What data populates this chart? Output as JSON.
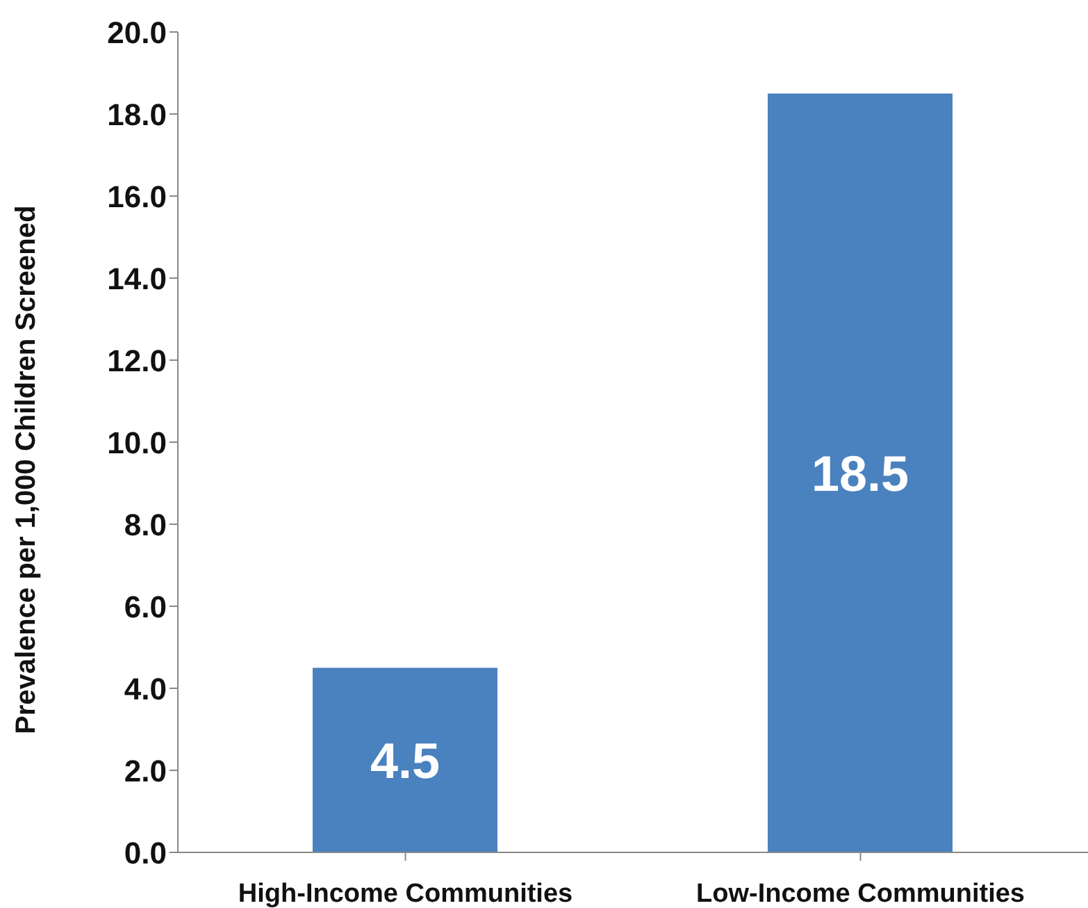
{
  "chart_data": {
    "type": "bar",
    "ylabel": "Prevalence per 1,000 Children Screened",
    "categories": [
      "High-Income Communities",
      "Low-Income Communities"
    ],
    "values": [
      4.5,
      18.5
    ],
    "color": "#4a81bf",
    "ylim": [
      0,
      20
    ],
    "yticks": [
      {
        "value": 0,
        "label": "0.0"
      },
      {
        "value": 2,
        "label": "2.0"
      },
      {
        "value": 4,
        "label": "4.0"
      },
      {
        "value": 6,
        "label": "6.0"
      },
      {
        "value": 8,
        "label": "8.0"
      },
      {
        "value": 10,
        "label": "10.0"
      },
      {
        "value": 12,
        "label": "12.0"
      },
      {
        "value": 14,
        "label": "14.0"
      },
      {
        "value": 16,
        "label": "16.0"
      },
      {
        "value": 18,
        "label": "18.0"
      },
      {
        "value": 20,
        "label": "20.0"
      }
    ],
    "grid": false,
    "data_labels": true
  }
}
